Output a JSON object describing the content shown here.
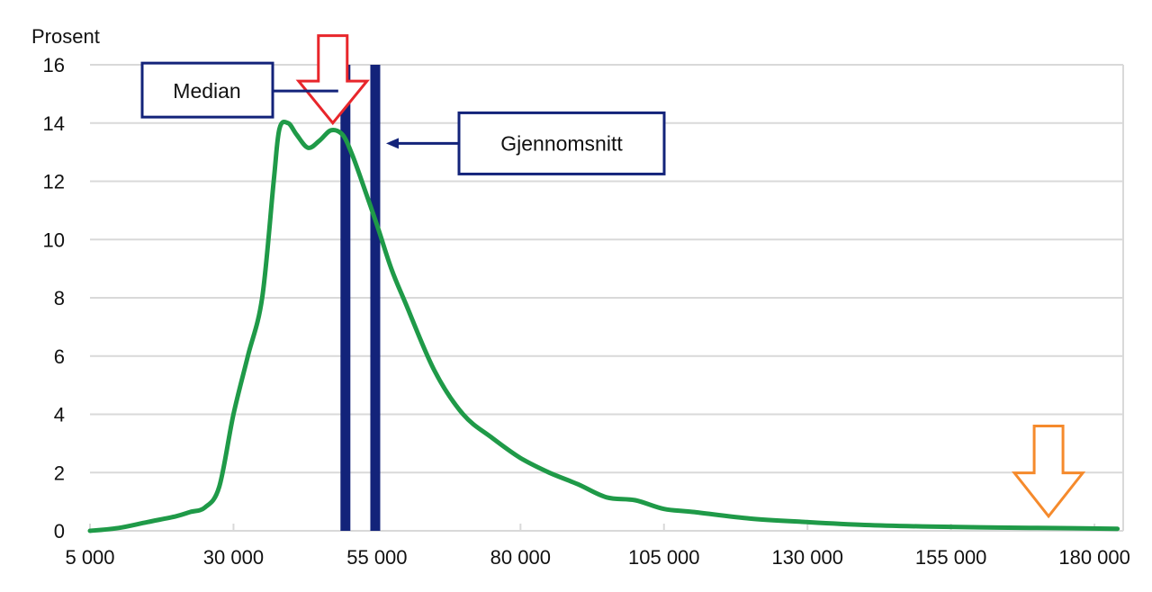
{
  "chart_data": {
    "type": "line",
    "ylabel": "Prosent",
    "xlabel": "",
    "xlim": [
      5000,
      185000
    ],
    "ylim": [
      0,
      16
    ],
    "x_ticks": [
      5000,
      30000,
      55000,
      80000,
      105000,
      130000,
      155000,
      180000
    ],
    "x_tick_labels": [
      "5 000",
      "30 000",
      "55 000",
      "80 000",
      "105 000",
      "130 000",
      "155 000",
      "180 000"
    ],
    "y_ticks": [
      0,
      2,
      4,
      6,
      8,
      10,
      12,
      14,
      16
    ],
    "y_tick_labels": [
      "0",
      "2",
      "4",
      "6",
      "8",
      "10",
      "12",
      "14",
      "16"
    ],
    "grid": true,
    "series": [
      {
        "color": "#1f9a48",
        "points": [
          [
            5000,
            0.0
          ],
          [
            10000,
            0.1
          ],
          [
            15000,
            0.3
          ],
          [
            20000,
            0.5
          ],
          [
            22500,
            0.65
          ],
          [
            25000,
            0.8
          ],
          [
            27500,
            1.5
          ],
          [
            30000,
            4.0
          ],
          [
            32500,
            6.0
          ],
          [
            35000,
            8.0
          ],
          [
            37000,
            12.0
          ],
          [
            38000,
            13.8
          ],
          [
            39500,
            14.0
          ],
          [
            41000,
            13.6
          ],
          [
            43000,
            13.15
          ],
          [
            45000,
            13.4
          ],
          [
            47000,
            13.75
          ],
          [
            49000,
            13.6
          ],
          [
            50500,
            13.0
          ],
          [
            52000,
            12.2
          ],
          [
            55000,
            10.5
          ],
          [
            57500,
            9.0
          ],
          [
            60000,
            7.8
          ],
          [
            65000,
            5.5
          ],
          [
            70000,
            4.0
          ],
          [
            75000,
            3.2
          ],
          [
            80000,
            2.5
          ],
          [
            85000,
            2.0
          ],
          [
            90000,
            1.6
          ],
          [
            95000,
            1.15
          ],
          [
            100000,
            1.05
          ],
          [
            105000,
            0.75
          ],
          [
            110000,
            0.65
          ],
          [
            120000,
            0.42
          ],
          [
            130000,
            0.3
          ],
          [
            140000,
            0.2
          ],
          [
            150000,
            0.15
          ],
          [
            160000,
            0.12
          ],
          [
            170000,
            0.1
          ],
          [
            184000,
            0.07
          ]
        ]
      }
    ],
    "markers": [
      {
        "name": "Median",
        "x": 49500,
        "color": "#13237a"
      },
      {
        "name": "Gjennomsnitt",
        "x": 54700,
        "color": "#13237a"
      }
    ],
    "arrows": [
      {
        "x": 47300,
        "y_top": 17.0,
        "y_tip": 14.0,
        "color": "#e8262b"
      },
      {
        "x": 172000,
        "y_top": 3.6,
        "y_tip": 0.5,
        "color": "#f58a2c"
      }
    ],
    "annotations": [
      {
        "text": "Median",
        "target_x": 49500,
        "y": 15.1
      },
      {
        "text": "Gjennomsnitt",
        "target_x": 54700,
        "y": 13.3
      }
    ]
  }
}
